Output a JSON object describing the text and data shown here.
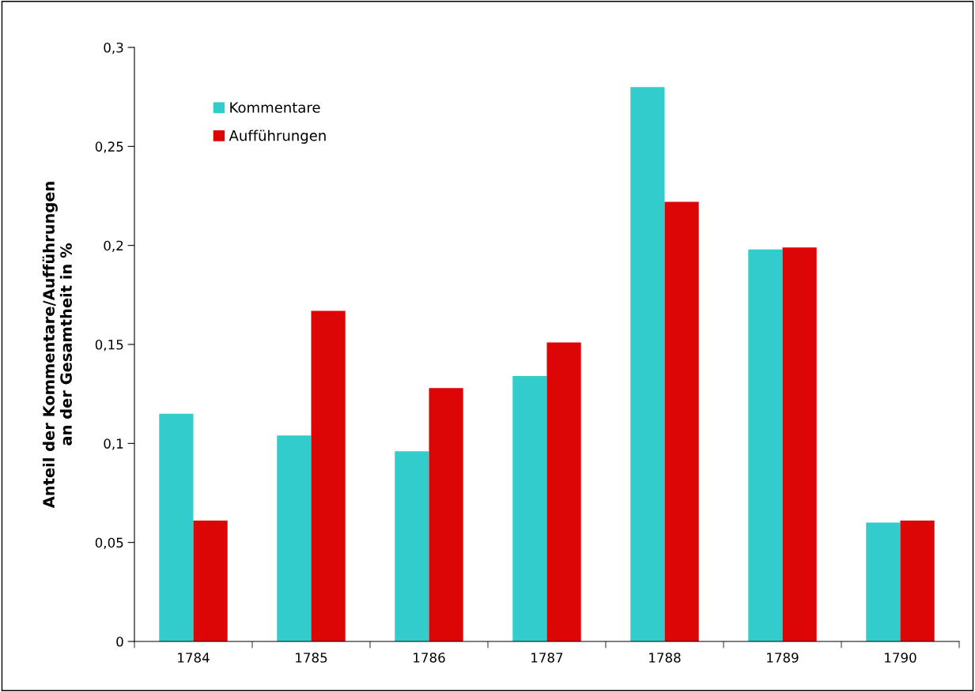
{
  "chart_data": {
    "type": "bar",
    "ylabel": "Anteil der Kommentare/Aufführungen\nan der Gesamtheit in %",
    "categories": [
      "1784",
      "1785",
      "1786",
      "1787",
      "1788",
      "1789",
      "1790"
    ],
    "series": [
      {
        "name": "Kommentare",
        "color": "#33cccc",
        "values": [
          0.115,
          0.104,
          0.096,
          0.134,
          0.28,
          0.198,
          0.06
        ]
      },
      {
        "name": "Aufführungen",
        "color": "#dd0606",
        "values": [
          0.061,
          0.167,
          0.128,
          0.151,
          0.222,
          0.199,
          0.061
        ]
      }
    ],
    "ylim": [
      0,
      0.3
    ],
    "yticks": [
      0,
      {
        "value": 0.05,
        "label": "0,05"
      },
      {
        "value": 0.1,
        "label": "0,1"
      },
      {
        "value": 0.15,
        "label": "0,15"
      },
      {
        "value": 0.2,
        "label": "0,2"
      },
      {
        "value": 0.25,
        "label": "0,25"
      },
      {
        "value": 0.3,
        "label": "0,3"
      }
    ],
    "grid": false,
    "legend": "top left"
  }
}
